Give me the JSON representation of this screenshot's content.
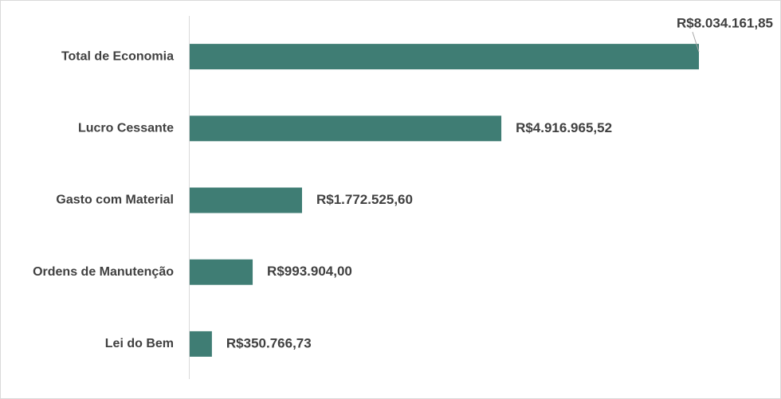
{
  "chart_data": {
    "type": "bar",
    "orientation": "horizontal",
    "categories": [
      "Total de Economia",
      "Lucro Cessante",
      "Gasto com Material",
      "Ordens de Manutenção",
      "Lei do Bem"
    ],
    "values": [
      8034161.85,
      4916965.52,
      1772525.6,
      993904.0,
      350766.73
    ],
    "value_labels": [
      "R$8.034.161,85",
      "R$4.916.965,52",
      "R$1.772.525,60",
      "R$993.904,00",
      "R$350.766,73"
    ],
    "color": "#3f7d74"
  }
}
